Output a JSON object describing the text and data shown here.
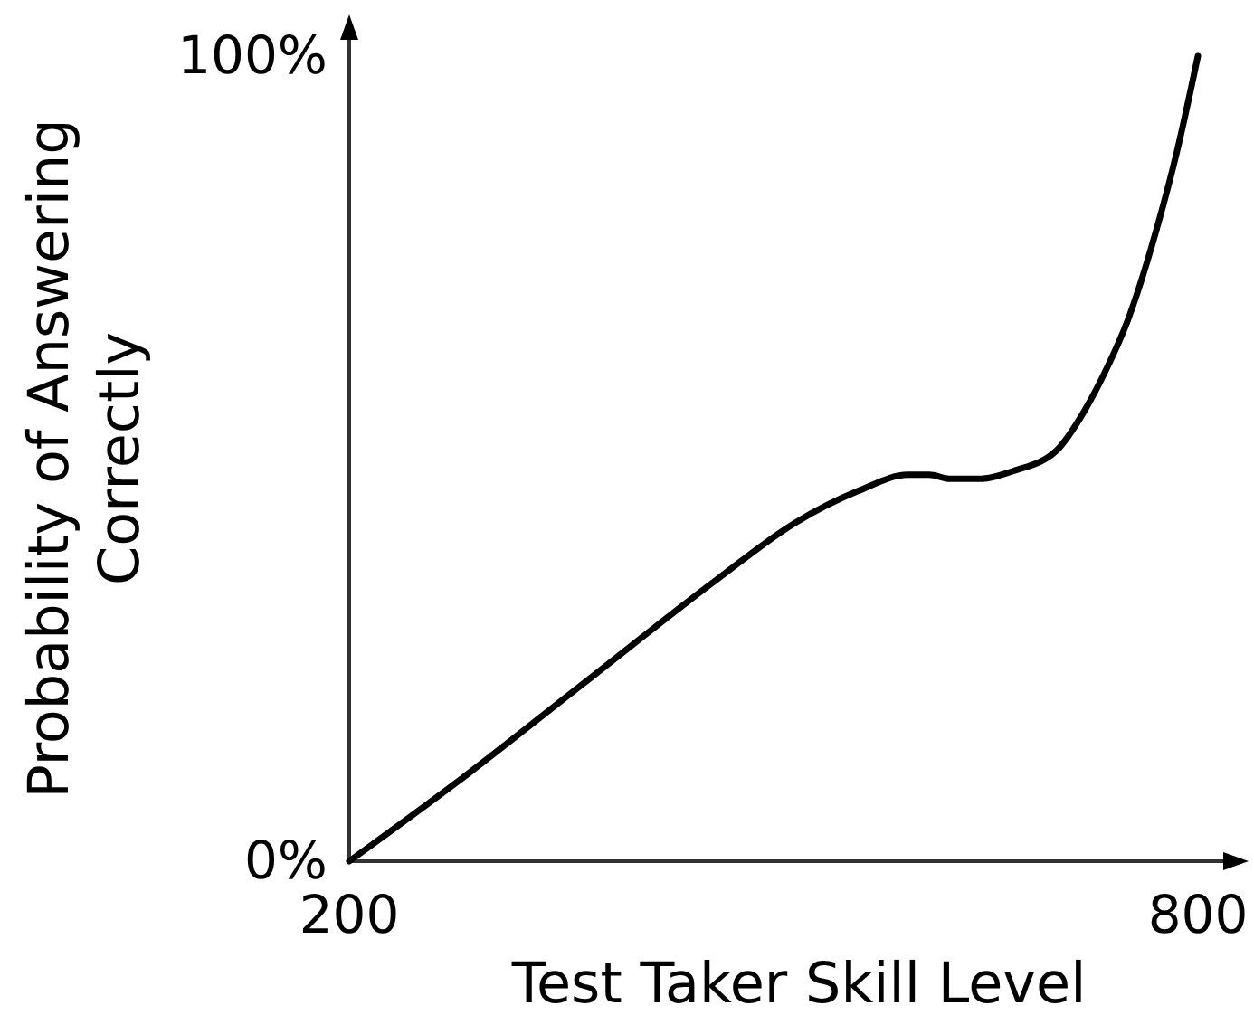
{
  "chart_data": {
    "type": "line",
    "xlabel": "Test Taker Skill Level",
    "ylabel": "Probability of Answering Correctly",
    "x": [
      200,
      285,
      365,
      460,
      515,
      560,
      595,
      610,
      625,
      645,
      670,
      700,
      720,
      735,
      750,
      770,
      785,
      800
    ],
    "series": [
      {
        "color": "#000000",
        "values": [
          0,
          11,
          22,
          35,
          42,
          46,
          48,
          48,
          47.5,
          47.5,
          48.5,
          51,
          56,
          61,
          67,
          78,
          88,
          100
        ]
      }
    ],
    "xlim": [
      200,
      800
    ],
    "ylim": [
      0,
      100
    ],
    "xticks": [
      200,
      800
    ],
    "yticks": [
      {
        "value": 0,
        "label": "0%"
      },
      {
        "value": 100,
        "label": "100%"
      }
    ]
  }
}
